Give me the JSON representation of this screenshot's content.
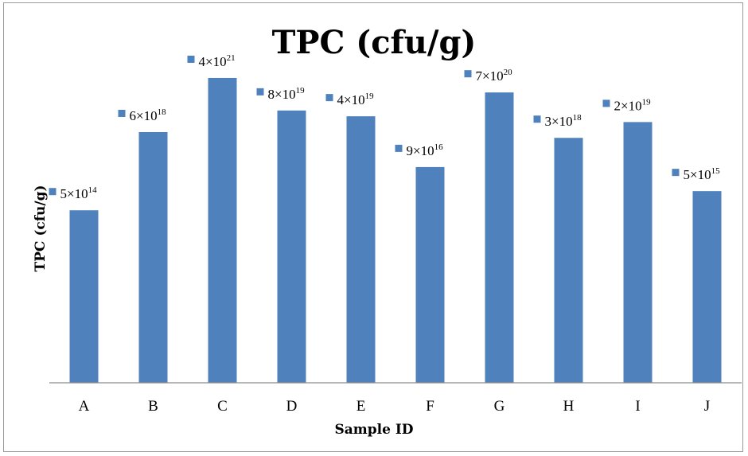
{
  "chart_data": {
    "type": "bar",
    "title": "TPC (cfu/g)",
    "xlabel": "Sample ID",
    "ylabel": "TPC (cfu/g)",
    "categories": [
      "A",
      "B",
      "C",
      "D",
      "E",
      "F",
      "G",
      "H",
      "I",
      "J"
    ],
    "series": [
      {
        "values": [
          500000000000000.0,
          6e+18,
          4e+21,
          8e+19,
          4e+19,
          9e+16,
          7e+20,
          3e+18,
          2e+19,
          5000000000000000.0
        ],
        "labels": [
          {
            "mantissa": "5",
            "exponent": "14"
          },
          {
            "mantissa": "6",
            "exponent": "18"
          },
          {
            "mantissa": "4",
            "exponent": "21"
          },
          {
            "mantissa": "8",
            "exponent": "19"
          },
          {
            "mantissa": "4",
            "exponent": "19"
          },
          {
            "mantissa": "9",
            "exponent": "16"
          },
          {
            "mantissa": "7",
            "exponent": "20"
          },
          {
            "mantissa": "3",
            "exponent": "18"
          },
          {
            "mantissa": "2",
            "exponent": "19"
          },
          {
            "mantissa": "5",
            "exponent": "15"
          }
        ]
      }
    ],
    "label_base": "×10",
    "yscale": "log",
    "grid": false,
    "legend": "none",
    "bar_color": "#4f81bd",
    "label_marker_color": "#4f81bd"
  }
}
